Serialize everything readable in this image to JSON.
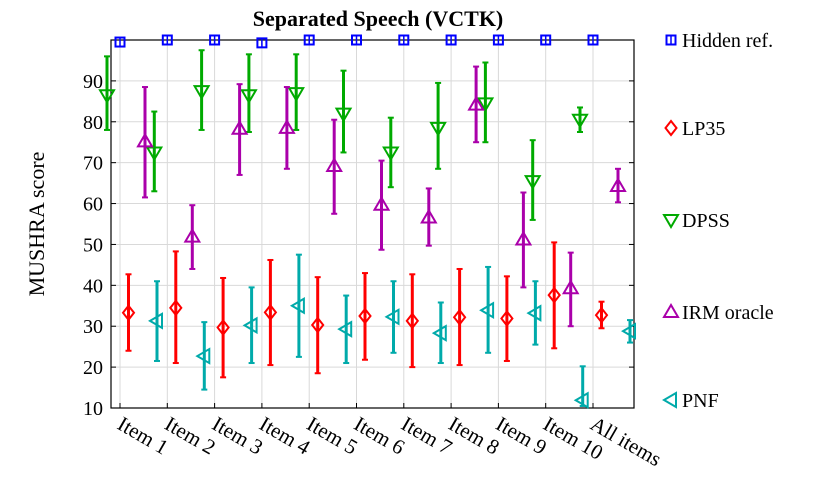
{
  "chart_data": {
    "type": "scatter",
    "title": "Separated Speech (VCTK)",
    "xlabel": "",
    "ylabel": "MUSHRA score",
    "categories": [
      "Item 1",
      "Item 2",
      "Item 3",
      "Item 4",
      "Item 5",
      "Item 6",
      "Item 7",
      "Item 8",
      "Item 9",
      "Item 10",
      "All items"
    ],
    "ylim": [
      10,
      100
    ],
    "yticks": [
      10,
      20,
      30,
      40,
      50,
      60,
      70,
      80,
      90
    ],
    "grid": true,
    "legend_position": "right",
    "series": [
      {
        "name": "Hidden ref.",
        "color": "#0000ff",
        "marker": "square",
        "values": [
          99.5,
          100,
          100,
          99.3,
          100,
          100,
          100,
          100,
          100,
          100,
          100
        ],
        "low": [
          99.5,
          100,
          100,
          99.3,
          100,
          100,
          100,
          100,
          100,
          100,
          100
        ],
        "high": [
          99.5,
          100,
          100,
          99.3,
          100,
          100,
          100,
          100,
          100,
          100,
          100
        ]
      },
      {
        "name": "LP35",
        "color": "#ff0000",
        "marker": "diamond",
        "values": [
          33.3,
          34.5,
          29.7,
          33.4,
          30.3,
          32.5,
          31.3,
          32.2,
          31.9,
          37.6,
          32.7
        ],
        "low": [
          24,
          21,
          17.5,
          20.5,
          18.5,
          21.8,
          20,
          20.5,
          21.5,
          24.6,
          29.5
        ],
        "high": [
          42.7,
          48.3,
          41.8,
          46.2,
          42,
          43,
          42.7,
          44,
          42.2,
          50.5,
          36
        ]
      },
      {
        "name": "DPSS",
        "color": "#00aa00",
        "marker": "triangle-down",
        "values": [
          86.5,
          72.5,
          87.5,
          86.5,
          87,
          82,
          72.5,
          78.5,
          84.5,
          65.5,
          80.5
        ],
        "low": [
          78,
          63,
          78,
          77.5,
          78,
          72.5,
          64,
          68.5,
          75,
          56,
          77.5
        ],
        "high": [
          96,
          82.5,
          97.5,
          96.5,
          96.5,
          92.5,
          81,
          89.5,
          94.5,
          75.5,
          83.5
        ]
      },
      {
        "name": "IRM oracle",
        "color": "#aa00aa",
        "marker": "triangle-up",
        "values": [
          75.2,
          51.9,
          78.3,
          78.5,
          69.2,
          59.7,
          56.6,
          84.2,
          51.2,
          39.3,
          64.3
        ],
        "low": [
          61.5,
          44,
          67,
          68.5,
          57.5,
          48.7,
          49.7,
          75,
          39.5,
          30,
          60.3
        ],
        "high": [
          88.5,
          59.6,
          89.2,
          88.5,
          80.5,
          70.5,
          63.7,
          93.5,
          62.7,
          48,
          68.5
        ]
      },
      {
        "name": "PNF",
        "color": "#00aaaa",
        "marker": "triangle-left",
        "values": [
          31.3,
          22.7,
          30.2,
          35,
          29.3,
          32.3,
          28.3,
          33.9,
          33.2,
          11.9,
          28.8
        ],
        "low": [
          21.5,
          14.5,
          21,
          22.5,
          21,
          23.5,
          21,
          23.5,
          25.5,
          10.5,
          26
        ],
        "high": [
          41,
          31,
          39.5,
          47.5,
          37.5,
          41,
          35.8,
          44.5,
          41,
          20.2,
          31.5
        ]
      }
    ]
  }
}
